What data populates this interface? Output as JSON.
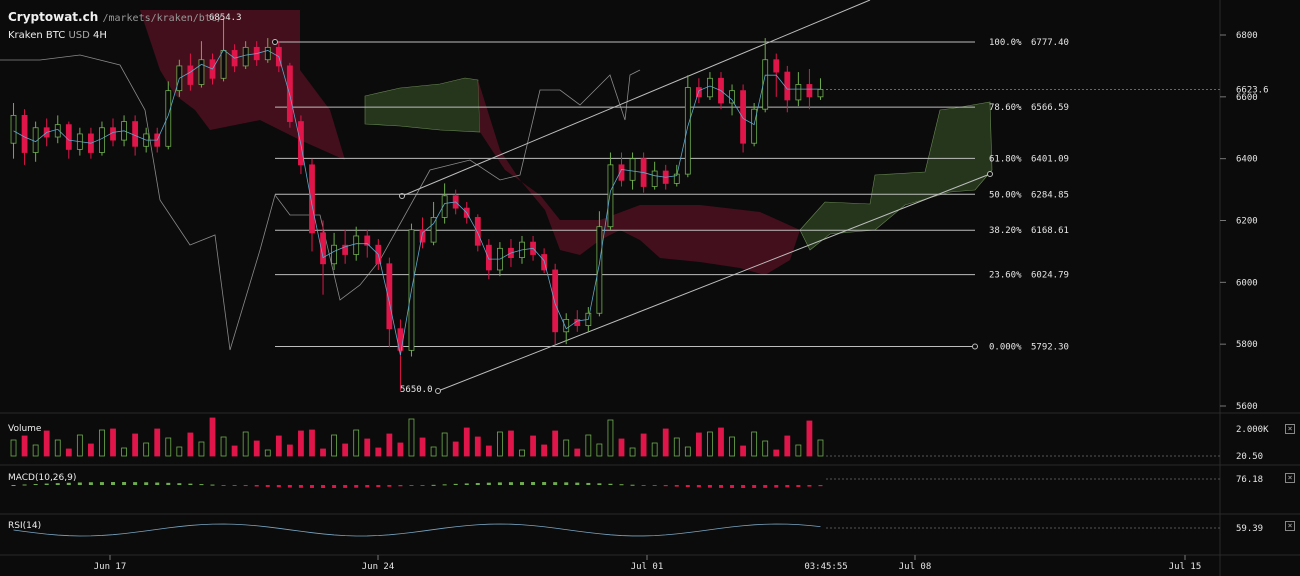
{
  "header": {
    "site": "Cryptowat.ch",
    "path": "/markets/kraken/btc/",
    "exchange": "Kraken",
    "pair": "BTC",
    "quote": "USD",
    "interval": "4H"
  },
  "price_high_label": "6854.3",
  "price_low_label": "5650.0",
  "current_price": "6623.6",
  "fib_levels": [
    {
      "pct": "100.0%",
      "price": "6777.40",
      "value": 6777.4
    },
    {
      "pct": "78.60%",
      "price": "6566.59",
      "value": 6566.59
    },
    {
      "pct": "61.80%",
      "price": "6401.09",
      "value": 6401.09
    },
    {
      "pct": "50.00%",
      "price": "6284.85",
      "value": 6284.85
    },
    {
      "pct": "38.20%",
      "price": "6168.61",
      "value": 6168.61
    },
    {
      "pct": "23.60%",
      "price": "6024.79",
      "value": 6024.79
    },
    {
      "pct": "0.000%",
      "price": "5792.30",
      "value": 5792.3
    }
  ],
  "panels": {
    "volume": {
      "label": "Volume",
      "max_label": "2.000K",
      "cur_label": "20.50"
    },
    "macd": {
      "label": "MACD(10,26,9)",
      "value_label": "76.18"
    },
    "rsi": {
      "label": "RSI(14)",
      "value_label": "59.39"
    }
  },
  "x_axis": {
    "ticks": [
      "Jun 17",
      "Jun 24",
      "Jul 01",
      "Jul 08",
      "Jul 15"
    ],
    "current_time": "03:45:55"
  },
  "colors": {
    "background": "#0b0b0b",
    "up": "#6fae4f",
    "down": "#e0164a",
    "cloud_bull": "#27391f",
    "cloud_bear": "#4a0f1e",
    "fib_line": "#bdbdbd"
  },
  "chart_data": {
    "type": "candlestick",
    "title": "Kraken BTC USD 4H",
    "ylim": [
      5600,
      6900
    ],
    "y_ticks": [
      5600,
      5800,
      6000,
      6200,
      6400,
      6600,
      6800
    ],
    "candles": [
      {
        "o": 6450,
        "c": 6540,
        "h": 6580,
        "l": 6400
      },
      {
        "o": 6540,
        "c": 6420,
        "h": 6560,
        "l": 6380
      },
      {
        "o": 6420,
        "c": 6500,
        "h": 6520,
        "l": 6390
      },
      {
        "o": 6500,
        "c": 6470,
        "h": 6530,
        "l": 6440
      },
      {
        "o": 6470,
        "c": 6510,
        "h": 6540,
        "l": 6450
      },
      {
        "o": 6510,
        "c": 6430,
        "h": 6520,
        "l": 6400
      },
      {
        "o": 6430,
        "c": 6480,
        "h": 6500,
        "l": 6410
      },
      {
        "o": 6480,
        "c": 6420,
        "h": 6500,
        "l": 6400
      },
      {
        "o": 6420,
        "c": 6500,
        "h": 6520,
        "l": 6410
      },
      {
        "o": 6500,
        "c": 6460,
        "h": 6530,
        "l": 6440
      },
      {
        "o": 6460,
        "c": 6520,
        "h": 6540,
        "l": 6440
      },
      {
        "o": 6520,
        "c": 6440,
        "h": 6540,
        "l": 6410
      },
      {
        "o": 6440,
        "c": 6480,
        "h": 6500,
        "l": 6420
      },
      {
        "o": 6480,
        "c": 6440,
        "h": 6500,
        "l": 6420
      },
      {
        "o": 6440,
        "c": 6620,
        "h": 6650,
        "l": 6430
      },
      {
        "o": 6620,
        "c": 6700,
        "h": 6720,
        "l": 6600
      },
      {
        "o": 6700,
        "c": 6640,
        "h": 6740,
        "l": 6620
      },
      {
        "o": 6640,
        "c": 6720,
        "h": 6780,
        "l": 6630
      },
      {
        "o": 6720,
        "c": 6660,
        "h": 6740,
        "l": 6640
      },
      {
        "o": 6660,
        "c": 6750,
        "h": 6854,
        "l": 6650
      },
      {
        "o": 6750,
        "c": 6700,
        "h": 6770,
        "l": 6680
      },
      {
        "o": 6700,
        "c": 6760,
        "h": 6780,
        "l": 6690
      },
      {
        "o": 6760,
        "c": 6720,
        "h": 6780,
        "l": 6700
      },
      {
        "o": 6720,
        "c": 6760,
        "h": 6790,
        "l": 6710
      },
      {
        "o": 6760,
        "c": 6700,
        "h": 6780,
        "l": 6680
      },
      {
        "o": 6700,
        "c": 6520,
        "h": 6710,
        "l": 6500
      },
      {
        "o": 6520,
        "c": 6380,
        "h": 6540,
        "l": 6350
      },
      {
        "o": 6380,
        "c": 6160,
        "h": 6400,
        "l": 6100
      },
      {
        "o": 6160,
        "c": 6060,
        "h": 6200,
        "l": 5960
      },
      {
        "o": 6060,
        "c": 6120,
        "h": 6160,
        "l": 6040
      },
      {
        "o": 6120,
        "c": 6090,
        "h": 6170,
        "l": 6060
      },
      {
        "o": 6090,
        "c": 6150,
        "h": 6180,
        "l": 6070
      },
      {
        "o": 6150,
        "c": 6120,
        "h": 6170,
        "l": 6080
      },
      {
        "o": 6120,
        "c": 6060,
        "h": 6140,
        "l": 6040
      },
      {
        "o": 6060,
        "c": 5850,
        "h": 6080,
        "l": 5790
      },
      {
        "o": 5850,
        "c": 5780,
        "h": 5880,
        "l": 5650
      },
      {
        "o": 5780,
        "c": 6170,
        "h": 6190,
        "l": 5760
      },
      {
        "o": 6170,
        "c": 6130,
        "h": 6210,
        "l": 6110
      },
      {
        "o": 6130,
        "c": 6210,
        "h": 6260,
        "l": 6120
      },
      {
        "o": 6210,
        "c": 6280,
        "h": 6320,
        "l": 6190
      },
      {
        "o": 6280,
        "c": 6240,
        "h": 6300,
        "l": 6220
      },
      {
        "o": 6240,
        "c": 6210,
        "h": 6260,
        "l": 6190
      },
      {
        "o": 6210,
        "c": 6120,
        "h": 6220,
        "l": 6100
      },
      {
        "o": 6120,
        "c": 6040,
        "h": 6140,
        "l": 6010
      },
      {
        "o": 6040,
        "c": 6110,
        "h": 6130,
        "l": 6020
      },
      {
        "o": 6110,
        "c": 6080,
        "h": 6140,
        "l": 6050
      },
      {
        "o": 6080,
        "c": 6130,
        "h": 6150,
        "l": 6060
      },
      {
        "o": 6130,
        "c": 6090,
        "h": 6150,
        "l": 6070
      },
      {
        "o": 6090,
        "c": 6040,
        "h": 6110,
        "l": 6030
      },
      {
        "o": 6040,
        "c": 5840,
        "h": 6060,
        "l": 5800
      },
      {
        "o": 5840,
        "c": 5880,
        "h": 5900,
        "l": 5800
      },
      {
        "o": 5880,
        "c": 5860,
        "h": 5910,
        "l": 5840
      },
      {
        "o": 5860,
        "c": 5900,
        "h": 5920,
        "l": 5840
      },
      {
        "o": 5900,
        "c": 6180,
        "h": 6230,
        "l": 5890
      },
      {
        "o": 6180,
        "c": 6380,
        "h": 6420,
        "l": 6170
      },
      {
        "o": 6380,
        "c": 6330,
        "h": 6420,
        "l": 6310
      },
      {
        "o": 6330,
        "c": 6400,
        "h": 6420,
        "l": 6300
      },
      {
        "o": 6400,
        "c": 6310,
        "h": 6420,
        "l": 6290
      },
      {
        "o": 6310,
        "c": 6360,
        "h": 6390,
        "l": 6300
      },
      {
        "o": 6360,
        "c": 6320,
        "h": 6380,
        "l": 6300
      },
      {
        "o": 6320,
        "c": 6350,
        "h": 6380,
        "l": 6310
      },
      {
        "o": 6350,
        "c": 6630,
        "h": 6670,
        "l": 6340
      },
      {
        "o": 6630,
        "c": 6600,
        "h": 6660,
        "l": 6580
      },
      {
        "o": 6600,
        "c": 6660,
        "h": 6680,
        "l": 6590
      },
      {
        "o": 6660,
        "c": 6580,
        "h": 6680,
        "l": 6560
      },
      {
        "o": 6580,
        "c": 6620,
        "h": 6640,
        "l": 6540
      },
      {
        "o": 6620,
        "c": 6450,
        "h": 6640,
        "l": 6420
      },
      {
        "o": 6450,
        "c": 6560,
        "h": 6580,
        "l": 6440
      },
      {
        "o": 6560,
        "c": 6720,
        "h": 6790,
        "l": 6550
      },
      {
        "o": 6720,
        "c": 6680,
        "h": 6740,
        "l": 6600
      },
      {
        "o": 6680,
        "c": 6590,
        "h": 6700,
        "l": 6550
      },
      {
        "o": 6590,
        "c": 6640,
        "h": 6680,
        "l": 6570
      },
      {
        "o": 6640,
        "c": 6600,
        "h": 6690,
        "l": 6560
      },
      {
        "o": 6600,
        "c": 6624,
        "h": 6660,
        "l": 6590
      }
    ]
  }
}
